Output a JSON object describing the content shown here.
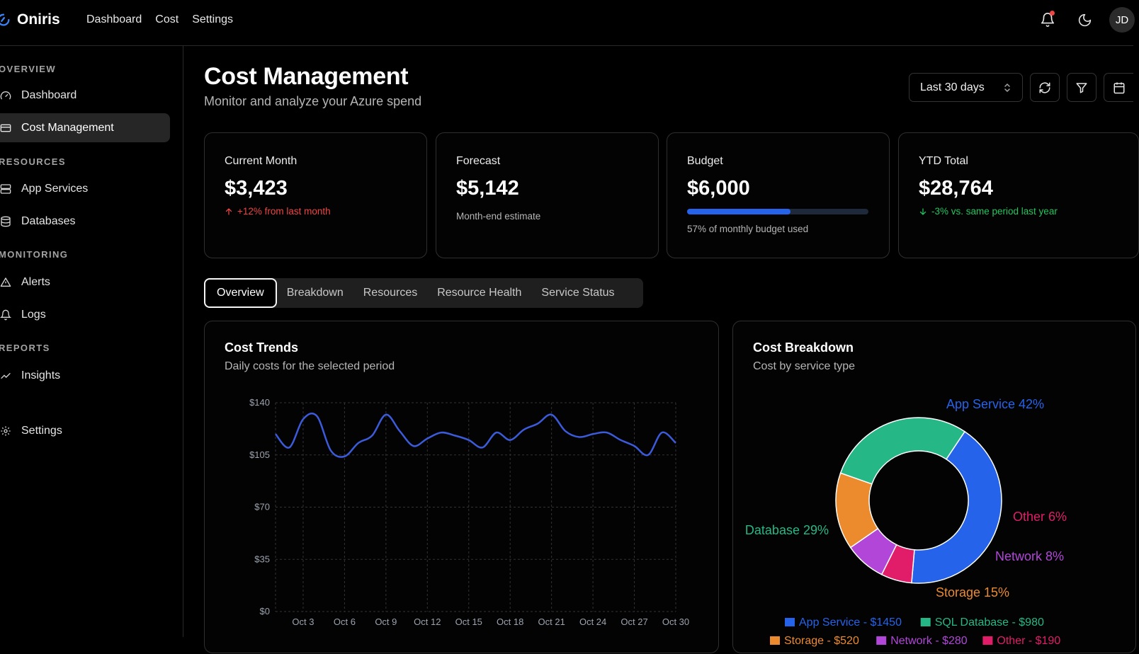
{
  "app": {
    "name": "Oniris"
  },
  "topnav": [
    "Dashboard",
    "Cost",
    "Settings"
  ],
  "user": {
    "initials": "JD"
  },
  "sidebar": {
    "sections": [
      "OVERVIEW",
      "RESOURCES",
      "MONITORING",
      "REPORTS"
    ],
    "items": [
      {
        "label": "Dashboard",
        "icon": "gauge-icon"
      },
      {
        "label": "Cost Management",
        "icon": "card-icon",
        "active": true
      },
      {
        "label": "App Services",
        "icon": "server-icon"
      },
      {
        "label": "Databases",
        "icon": "database-icon"
      },
      {
        "label": "Alerts",
        "icon": "warning-icon"
      },
      {
        "label": "Logs",
        "icon": "bell-icon"
      },
      {
        "label": "Insights",
        "icon": "trend-icon"
      },
      {
        "label": "Settings",
        "icon": "gear-icon"
      }
    ]
  },
  "header": {
    "title": "Cost Management",
    "subtitle": "Monitor and analyze your Azure spend",
    "range": "Last 30 days"
  },
  "kpis": {
    "current": {
      "label": "Current Month",
      "value": "$3,423",
      "note": "+12% from last month"
    },
    "forecast": {
      "label": "Forecast",
      "value": "$5,142",
      "note": "Month-end estimate"
    },
    "budget": {
      "label": "Budget",
      "value": "$6,000",
      "note": "57% of monthly budget used",
      "used_fraction": 0.57
    },
    "ytd": {
      "label": "YTD Total",
      "value": "$28,764",
      "note": "-3% vs. same period last year"
    }
  },
  "tabs": [
    "Overview",
    "Breakdown",
    "Resources",
    "Resource Health",
    "Service Status"
  ],
  "trends": {
    "title": "Cost Trends",
    "subtitle": "Daily costs for the selected period"
  },
  "breakdown": {
    "title": "Cost Breakdown",
    "subtitle": "Cost by service type"
  },
  "colors": {
    "accent": "#2563eb",
    "up": "#ef4444",
    "down": "#22c55e"
  },
  "chart_data": [
    {
      "type": "line",
      "title": "Cost Trends",
      "subtitle": "Daily costs for the selected period",
      "x": [
        "Oct 1",
        "Oct 2",
        "Oct 3",
        "Oct 4",
        "Oct 5",
        "Oct 6",
        "Oct 7",
        "Oct 8",
        "Oct 9",
        "Oct 10",
        "Oct 11",
        "Oct 12",
        "Oct 13",
        "Oct 14",
        "Oct 15",
        "Oct 16",
        "Oct 17",
        "Oct 18",
        "Oct 19",
        "Oct 20",
        "Oct 21",
        "Oct 22",
        "Oct 23",
        "Oct 24",
        "Oct 25",
        "Oct 26",
        "Oct 27",
        "Oct 28",
        "Oct 29",
        "Oct 30"
      ],
      "xticks": [
        "Oct 3",
        "Oct 6",
        "Oct 9",
        "Oct 12",
        "Oct 15",
        "Oct 18",
        "Oct 21",
        "Oct 24",
        "Oct 27",
        "Oct 30"
      ],
      "yticks": [
        "$0",
        "$35",
        "$70",
        "$105",
        "$140"
      ],
      "ylim": [
        0,
        140
      ],
      "series": [
        {
          "values": [
            119,
            110,
            129,
            131,
            108,
            104,
            113,
            118,
            132,
            121,
            111,
            116,
            120,
            118,
            115,
            110,
            120,
            115,
            122,
            126,
            132,
            121,
            117,
            119,
            120,
            115,
            111,
            105,
            120,
            113
          ]
        }
      ],
      "grid": true,
      "color": "#3b5bdb"
    },
    {
      "type": "pie",
      "title": "Cost Breakdown",
      "subtitle": "Cost by service type",
      "slices": [
        {
          "label": "App Service 42%",
          "value": 42,
          "color": "#2563eb"
        },
        {
          "label": "Other 6%",
          "value": 6,
          "color": "#e11d69"
        },
        {
          "label": "Network 8%",
          "value": 8,
          "color": "#b146d8"
        },
        {
          "label": "Storage 15%",
          "value": 15,
          "color": "#ec8a2e"
        },
        {
          "label": "Database 29%",
          "value": 29,
          "color": "#25b886"
        }
      ],
      "legend": [
        {
          "label": "App Service - $1450",
          "color": "#2563eb"
        },
        {
          "label": "SQL Database - $980",
          "color": "#25b886"
        },
        {
          "label": "Storage - $520",
          "color": "#ec8a2e"
        },
        {
          "label": "Network - $280",
          "color": "#b146d8"
        },
        {
          "label": "Other - $190",
          "color": "#e11d69"
        }
      ],
      "legend_position": "bottom"
    }
  ]
}
